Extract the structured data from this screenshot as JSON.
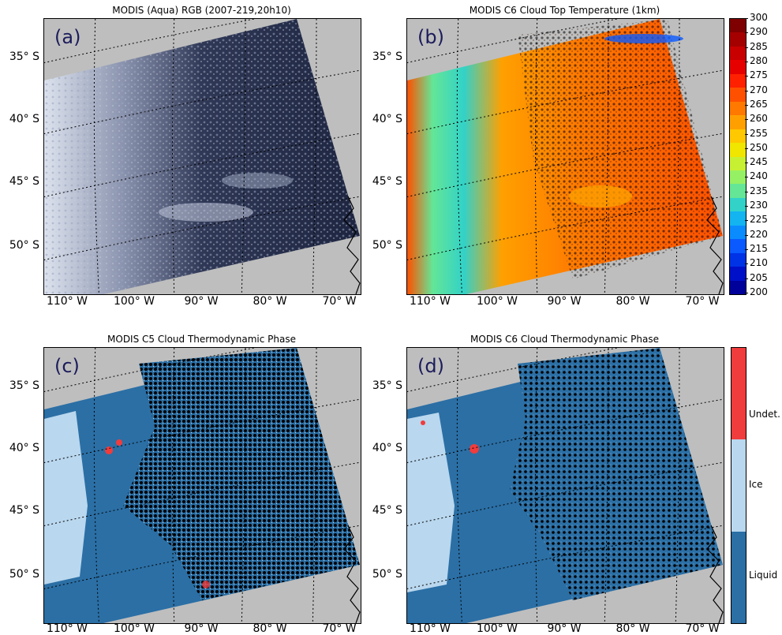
{
  "panels": [
    {
      "title": "MODIS (Aqua) RGB (2007-219,20h10)",
      "letter": "(a)"
    },
    {
      "title": "MODIS C6 Cloud Top Temperature (1km)",
      "letter": "(b)"
    },
    {
      "title": "MODIS C5 Cloud Thermodynamic Phase",
      "letter": "(c)"
    },
    {
      "title": "MODIS C6 Cloud Thermodynamic Phase",
      "letter": "(d)"
    }
  ],
  "lat_labels": [
    "35° S",
    "40° S",
    "45° S",
    "50° S"
  ],
  "lon_labels": [
    "110° W",
    "100° W",
    "90° W",
    "80° W",
    "70° W"
  ],
  "temperature_colorbar": {
    "ticks": [
      "300",
      "290",
      "285",
      "280",
      "275",
      "270",
      "265",
      "260",
      "255",
      "250",
      "245",
      "240",
      "235",
      "230",
      "225",
      "220",
      "215",
      "210",
      "205",
      "200"
    ],
    "colors": [
      "#7f0000",
      "#a50000",
      "#c80000",
      "#e60000",
      "#ff2000",
      "#ff5000",
      "#ff7800",
      "#ffa000",
      "#ffc800",
      "#f0e600",
      "#c8f032",
      "#96f064",
      "#64e696",
      "#32d2c8",
      "#14b4f0",
      "#0a8cff",
      "#0a5aff",
      "#0032e6",
      "#0010c8",
      "#00009a"
    ]
  },
  "phase_colorbar": {
    "labels": [
      "Undet.",
      "Ice",
      "Liquid"
    ],
    "colors": {
      "undetermined": "#f03c3c",
      "ice": "#b9d7ee",
      "liquid": "#2b6fa5"
    }
  },
  "colors": {
    "ocean_background": "#bebebe",
    "clear_sky": "#000000",
    "rgb_cloud": "#dde3ee",
    "rgb_ocean": "#1d2540"
  }
}
